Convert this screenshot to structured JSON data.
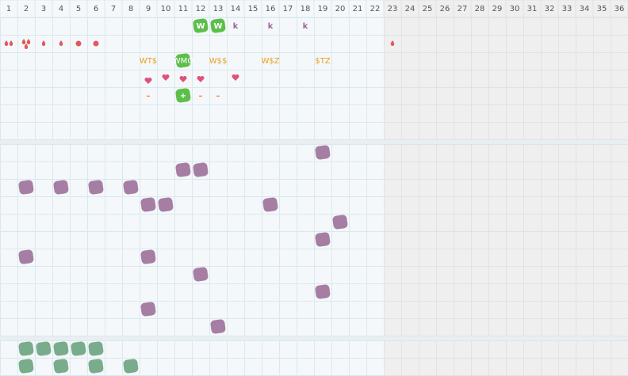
{
  "columns": [
    1,
    2,
    3,
    4,
    5,
    6,
    7,
    8,
    9,
    10,
    11,
    12,
    13,
    14,
    15,
    16,
    17,
    18,
    19,
    20,
    21,
    22,
    23,
    24,
    25,
    26,
    27,
    28,
    29,
    30,
    31,
    32,
    33,
    34,
    35,
    36
  ],
  "top_section": {
    "row_1": [
      "W",
      "W",
      "k",
      "k",
      "k"
    ],
    "row_3": [
      "WT$",
      "WMO",
      "W$$",
      "W$Z",
      "$TZ"
    ],
    "row_5": [
      "–",
      "+",
      "–",
      "–"
    ]
  }
}
